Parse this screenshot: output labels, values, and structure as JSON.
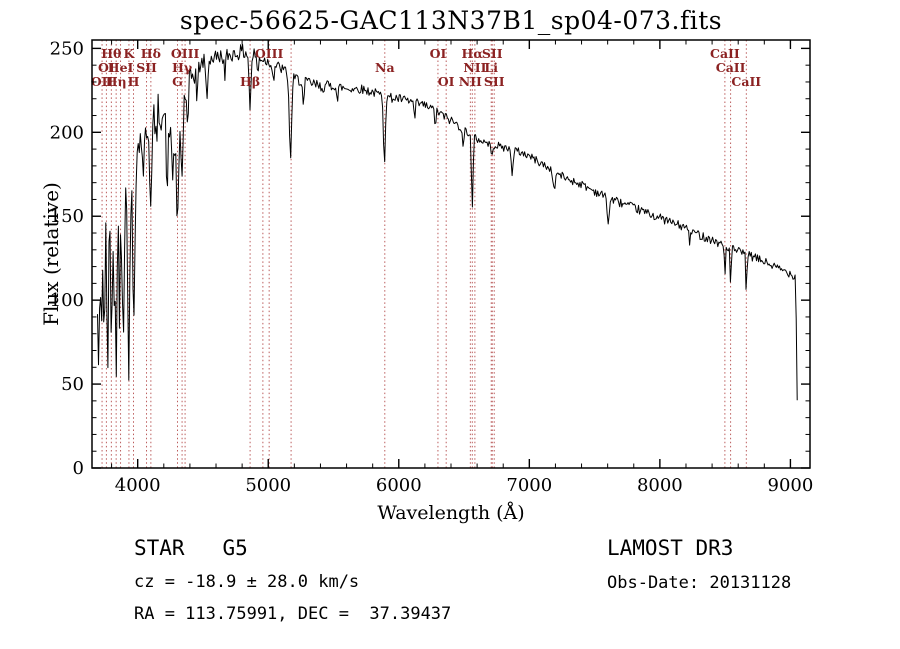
{
  "chart_data": {
    "type": "line",
    "title": "spec-56625-GAC113N37B1_sp04-073.fits",
    "xlabel": "Wavelength (Å)",
    "ylabel": "Flux (relative)",
    "xlim": [
      3650,
      9150
    ],
    "ylim": [
      0,
      255
    ],
    "xticks": [
      4000,
      5000,
      6000,
      7000,
      8000,
      9000
    ],
    "yticks": [
      0,
      50,
      100,
      150,
      200,
      250
    ],
    "x_minor_step": 200,
    "y_minor_step": 10,
    "grid": false,
    "legend": "none",
    "data_range": [
      3692,
      9056
    ],
    "colors": {
      "background": "#ffffff",
      "curve": "#000000",
      "axis": "#000000",
      "marker_line": "#b44b4b",
      "marker_label": "#8b2222"
    },
    "continuum": [
      [
        3692,
        100
      ],
      [
        3705,
        132
      ],
      [
        3725,
        148
      ],
      [
        3760,
        152
      ],
      [
        3800,
        150
      ],
      [
        3850,
        144
      ],
      [
        3900,
        155
      ],
      [
        3950,
        162
      ],
      [
        3975,
        172
      ],
      [
        4000,
        190
      ],
      [
        4050,
        205
      ],
      [
        4100,
        200
      ],
      [
        4150,
        215
      ],
      [
        4200,
        210
      ],
      [
        4250,
        200
      ],
      [
        4300,
        192
      ],
      [
        4350,
        220
      ],
      [
        4400,
        232
      ],
      [
        4500,
        242
      ],
      [
        4600,
        245
      ],
      [
        4700,
        246
      ],
      [
        4800,
        248
      ],
      [
        4900,
        246
      ],
      [
        5000,
        242
      ],
      [
        5100,
        238
      ],
      [
        5200,
        232
      ],
      [
        5300,
        230
      ],
      [
        5400,
        227
      ],
      [
        5500,
        228
      ],
      [
        5600,
        226
      ],
      [
        5700,
        226
      ],
      [
        5800,
        224
      ],
      [
        5900,
        221
      ],
      [
        6000,
        220
      ],
      [
        6100,
        218
      ],
      [
        6200,
        216
      ],
      [
        6300,
        212
      ],
      [
        6400,
        207
      ],
      [
        6500,
        202
      ],
      [
        6600,
        196
      ],
      [
        6700,
        193
      ],
      [
        6800,
        191
      ],
      [
        6900,
        189
      ],
      [
        7000,
        186
      ],
      [
        7100,
        181
      ],
      [
        7200,
        176
      ],
      [
        7300,
        172
      ],
      [
        7400,
        169
      ],
      [
        7500,
        165
      ],
      [
        7600,
        161
      ],
      [
        7700,
        158
      ],
      [
        7800,
        155
      ],
      [
        7900,
        152
      ],
      [
        8000,
        149
      ],
      [
        8100,
        146
      ],
      [
        8200,
        143
      ],
      [
        8300,
        139
      ],
      [
        8400,
        136
      ],
      [
        8500,
        132
      ],
      [
        8600,
        129
      ],
      [
        8700,
        126
      ],
      [
        8800,
        123
      ],
      [
        8900,
        119
      ],
      [
        9000,
        116
      ],
      [
        9040,
        114
      ],
      [
        9055,
        25
      ]
    ],
    "absorption_dips": [
      [
        3700,
        48,
        5
      ],
      [
        3712,
        55,
        6
      ],
      [
        3727,
        42,
        5
      ],
      [
        3745,
        70,
        6
      ],
      [
        3770,
        85,
        7
      ],
      [
        3798,
        65,
        6
      ],
      [
        3820,
        55,
        5
      ],
      [
        3835,
        72,
        6
      ],
      [
        3860,
        45,
        5
      ],
      [
        3889,
        62,
        6
      ],
      [
        3933,
        95,
        7
      ],
      [
        3970,
        82,
        7
      ],
      [
        4045,
        35,
        6
      ],
      [
        4101,
        48,
        7
      ],
      [
        4144,
        25,
        5
      ],
      [
        4226,
        42,
        6
      ],
      [
        4270,
        28,
        5
      ],
      [
        4305,
        52,
        8
      ],
      [
        4340,
        42,
        7
      ],
      [
        4383,
        30,
        6
      ],
      [
        4455,
        20,
        5
      ],
      [
        4530,
        26,
        6
      ],
      [
        4668,
        16,
        5
      ],
      [
        4861,
        33,
        7
      ],
      [
        4920,
        12,
        5
      ],
      [
        5040,
        10,
        5
      ],
      [
        5170,
        48,
        9
      ],
      [
        5270,
        16,
        6
      ],
      [
        5530,
        10,
        5
      ],
      [
        5890,
        38,
        7
      ],
      [
        6122,
        10,
        5
      ],
      [
        6280,
        8,
        5
      ],
      [
        6495,
        12,
        5
      ],
      [
        6563,
        45,
        6
      ],
      [
        6710,
        8,
        5
      ],
      [
        6870,
        14,
        7
      ],
      [
        7190,
        12,
        7
      ],
      [
        7605,
        16,
        7
      ],
      [
        8230,
        8,
        5
      ],
      [
        8498,
        18,
        4
      ],
      [
        8542,
        24,
        4
      ],
      [
        8662,
        22,
        4
      ]
    ],
    "noise": {
      "seed": 42,
      "step": 8,
      "regions": [
        [
          3692,
          3760,
          26
        ],
        [
          3760,
          3960,
          20
        ],
        [
          3960,
          4200,
          11
        ],
        [
          4200,
          4450,
          8
        ],
        [
          4450,
          4900,
          4.5
        ],
        [
          4900,
          5500,
          3.5
        ],
        [
          5500,
          6500,
          2.8
        ],
        [
          6500,
          7500,
          2.4
        ],
        [
          7500,
          9060,
          2.6
        ]
      ]
    },
    "line_markers": [
      {
        "wavelength": 3727,
        "label": "OII",
        "row": 3
      },
      {
        "wavelength": 3760,
        "label": "OI",
        "row": 2
      },
      {
        "wavelength": 3798,
        "label": "Hθ",
        "row": 1
      },
      {
        "wavelength": 3835,
        "label": "Hη",
        "row": 3
      },
      {
        "wavelength": 3869,
        "label": "HeI",
        "row": 2
      },
      {
        "wavelength": 3933,
        "label": "K",
        "row": 1
      },
      {
        "wavelength": 3968,
        "label": "H",
        "row": 3
      },
      {
        "wavelength": 4068,
        "label": "SII",
        "row": 2
      },
      {
        "wavelength": 4101,
        "label": "Hδ",
        "row": 1
      },
      {
        "wavelength": 4305,
        "label": "G",
        "row": 3
      },
      {
        "wavelength": 4340,
        "label": "Hγ",
        "row": 2
      },
      {
        "wavelength": 4363,
        "label": "OIII",
        "row": 1
      },
      {
        "wavelength": 4861,
        "label": "Hβ",
        "row": 3
      },
      {
        "wavelength": 4959,
        "label": "",
        "row": 0
      },
      {
        "wavelength": 5007,
        "label": "OIII",
        "row": 1
      },
      {
        "wavelength": 5175,
        "label": "",
        "row": 0
      },
      {
        "wavelength": 5893,
        "label": "Na",
        "row": 2
      },
      {
        "wavelength": 6300,
        "label": "OI",
        "row": 1
      },
      {
        "wavelength": 6363,
        "label": "OI",
        "row": 3
      },
      {
        "wavelength": 6548,
        "label": "NII",
        "row": 3
      },
      {
        "wavelength": 6563,
        "label": "Hα",
        "row": 1
      },
      {
        "wavelength": 6583,
        "label": "NII",
        "row": 2
      },
      {
        "wavelength": 6708,
        "label": "Li",
        "row": 2
      },
      {
        "wavelength": 6716,
        "label": "SII",
        "row": 1
      },
      {
        "wavelength": 6731,
        "label": "SII",
        "row": 3
      },
      {
        "wavelength": 8498,
        "label": "CaII",
        "row": 1
      },
      {
        "wavelength": 8542,
        "label": "CaII",
        "row": 2
      },
      {
        "wavelength": 8662,
        "label": "CaII",
        "row": 3
      }
    ]
  },
  "annotations": {
    "class_line": "STAR   G5",
    "survey": "LAMOST DR3",
    "cz_line": "cz = -18.9 ± 28.0 km/s",
    "obs_date": "Obs-Date: 20131128",
    "radec_line": "RA = 113.75991, DEC =  37.39437"
  }
}
